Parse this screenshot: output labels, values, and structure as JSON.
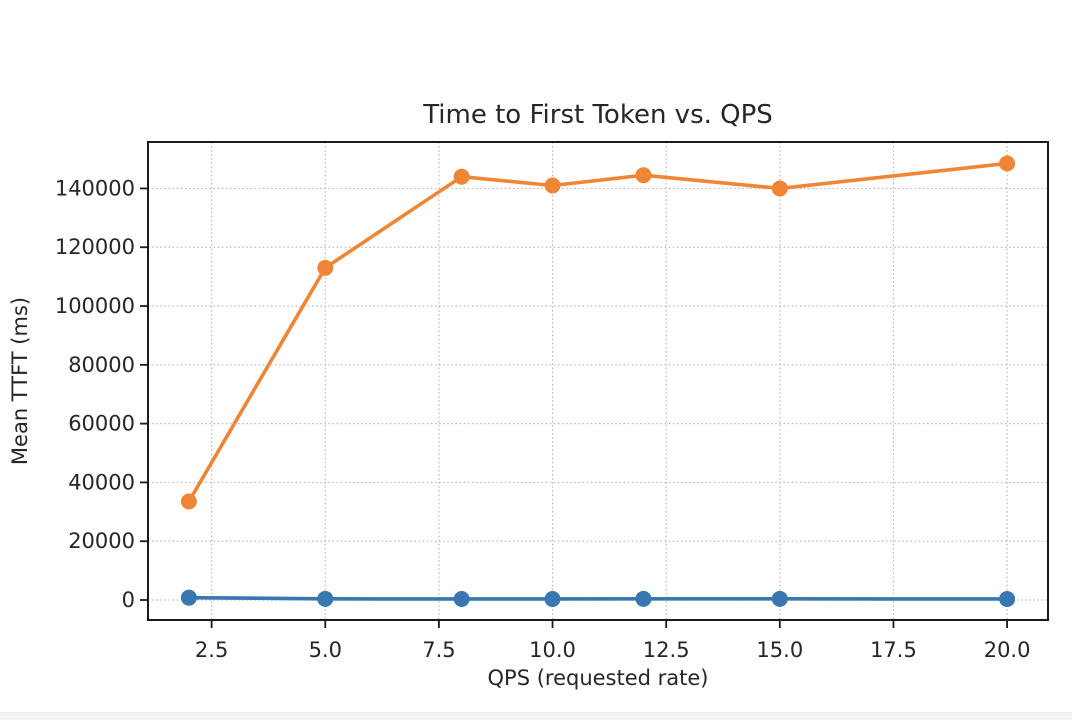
{
  "window": {
    "background": "#ffffff",
    "bottom_strip_color": "#f4f4f6"
  },
  "chart_data": {
    "type": "line",
    "title": "Time to First Token vs. QPS",
    "xlabel": "QPS (requested rate)",
    "ylabel": "Mean TTFT (ms)",
    "x": [
      2,
      5,
      8,
      10,
      12,
      15,
      20
    ],
    "series": [
      {
        "id": "blue",
        "color": "#3877af",
        "marker": "circle",
        "values": [
          800,
          400,
          350,
          350,
          400,
          400,
          350
        ]
      },
      {
        "id": "orange",
        "color": "#ef8636",
        "marker": "circle",
        "values": [
          33500,
          113000,
          144000,
          141000,
          144500,
          140000,
          148500
        ]
      }
    ],
    "xticks": {
      "values": [
        2.5,
        5,
        7.5,
        10,
        12.5,
        15,
        17.5,
        20
      ],
      "labels": [
        "2.5",
        "5.0",
        "7.5",
        "10.0",
        "12.5",
        "15.0",
        "17.5",
        "20.0"
      ]
    },
    "yticks": {
      "values": [
        0,
        20000,
        40000,
        60000,
        80000,
        100000,
        120000,
        140000
      ],
      "labels": [
        "0",
        "20000",
        "40000",
        "60000",
        "80000",
        "100000",
        "120000",
        "140000"
      ]
    },
    "xlim": [
      1.1,
      20.9
    ],
    "ylim": [
      -6800,
      155800
    ],
    "grid": {
      "style": "dotted",
      "color": "#b8b8b8"
    },
    "legend": "none",
    "text_color": "#262626",
    "spine_color": "#1b1b1b"
  }
}
